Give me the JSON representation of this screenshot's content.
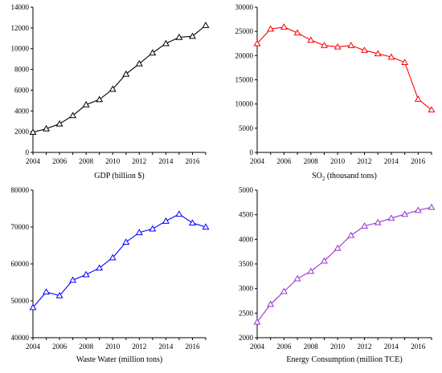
{
  "chart_data": [
    {
      "type": "line",
      "id": "gdp",
      "xlabel": "GDP (billion $)",
      "xlabel_sub": "",
      "xlabel_rest": "",
      "color": "#000000",
      "marker": "triangle-open",
      "x": [
        2004,
        2005,
        2006,
        2007,
        2008,
        2009,
        2010,
        2011,
        2012,
        2013,
        2014,
        2015,
        2016,
        2017
      ],
      "values": [
        1950,
        2280,
        2750,
        3550,
        4600,
        5100,
        6100,
        7550,
        8550,
        9600,
        10500,
        11100,
        11200,
        12250
      ],
      "xlim": [
        2004,
        2017
      ],
      "ylim": [
        0,
        14000
      ],
      "xticks": [
        2004,
        2006,
        2008,
        2010,
        2012,
        2014,
        2016
      ],
      "yticks": [
        0,
        2000,
        4000,
        6000,
        8000,
        10000,
        12000,
        14000
      ]
    },
    {
      "type": "line",
      "id": "so2",
      "xlabel": "SO",
      "xlabel_sub": "2",
      "xlabel_rest": " (thousand tons)",
      "color": "#ff0000",
      "marker": "triangle-open",
      "x": [
        2004,
        2005,
        2006,
        2007,
        2008,
        2009,
        2010,
        2011,
        2012,
        2013,
        2014,
        2015,
        2016,
        2017
      ],
      "values": [
        22500,
        25500,
        25900,
        24700,
        23200,
        22100,
        21800,
        22100,
        21100,
        20400,
        19700,
        18600,
        11000,
        8800
      ],
      "xlim": [
        2004,
        2017
      ],
      "ylim": [
        0,
        30000
      ],
      "xticks": [
        2004,
        2006,
        2008,
        2010,
        2012,
        2014,
        2016
      ],
      "yticks": [
        0,
        5000,
        10000,
        15000,
        20000,
        25000,
        30000
      ]
    },
    {
      "type": "line",
      "id": "wastewater",
      "xlabel": "Waste Water (million tons)",
      "xlabel_sub": "",
      "xlabel_rest": "",
      "color": "#0000ff",
      "marker": "triangle-open",
      "x": [
        2004,
        2005,
        2006,
        2007,
        2008,
        2009,
        2010,
        2011,
        2012,
        2013,
        2014,
        2015,
        2016,
        2017
      ],
      "values": [
        48200,
        52400,
        51400,
        55600,
        57100,
        58900,
        61700,
        65900,
        68500,
        69500,
        71600,
        73500,
        71100,
        70000
      ],
      "xlim": [
        2004,
        2017
      ],
      "ylim": [
        40000,
        80000
      ],
      "xticks": [
        2004,
        2006,
        2008,
        2010,
        2012,
        2014,
        2016
      ],
      "yticks": [
        40000,
        50000,
        60000,
        70000,
        80000
      ]
    },
    {
      "type": "line",
      "id": "energy",
      "xlabel": "Energy Consumption (million TCE)",
      "xlabel_sub": "",
      "xlabel_rest": "",
      "color": "#9933cc",
      "marker": "triangle-open",
      "x": [
        2004,
        2005,
        2006,
        2007,
        2008,
        2009,
        2010,
        2011,
        2012,
        2013,
        2014,
        2015,
        2016,
        2017
      ],
      "values": [
        2320,
        2680,
        2940,
        3200,
        3350,
        3560,
        3820,
        4080,
        4270,
        4340,
        4430,
        4510,
        4590,
        4650
      ],
      "xlim": [
        2004,
        2017
      ],
      "ylim": [
        2000,
        5000
      ],
      "xticks": [
        2004,
        2006,
        2008,
        2010,
        2012,
        2014,
        2016
      ],
      "yticks": [
        2000,
        2500,
        3000,
        3500,
        4000,
        4500,
        5000
      ]
    }
  ]
}
